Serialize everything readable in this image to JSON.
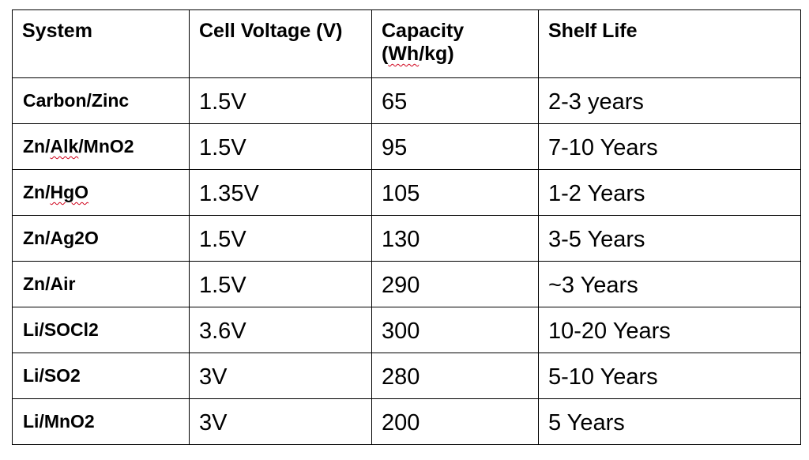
{
  "table": {
    "headers": {
      "system": "System",
      "cell_voltage": "Cell Voltage (V)",
      "capacity_line1": "Capacity",
      "capacity_line2_pre": "(",
      "capacity_line2_unit": "Wh",
      "capacity_line2_post": "/kg)",
      "shelf_life": "Shelf Life"
    },
    "rows": [
      {
        "system": "Carbon/Zinc",
        "voltage": "1.5V",
        "capacity": "65",
        "shelf_life": "2-3 years"
      },
      {
        "system_pre": "Zn/",
        "system_flag": "Alk",
        "system_post": "/MnO2",
        "voltage": "1.5V",
        "capacity": "95",
        "shelf_life": "7-10 Years"
      },
      {
        "system_pre": "Zn/",
        "system_flag": "HgO",
        "voltage": "1.35V",
        "capacity": "105",
        "shelf_life": "1-2 Years"
      },
      {
        "system": "Zn/Ag2O",
        "voltage": "1.5V",
        "capacity": "130",
        "shelf_life": "3-5 Years"
      },
      {
        "system": "Zn/Air",
        "voltage": "1.5V",
        "capacity": "290",
        "shelf_life": "~3 Years"
      },
      {
        "system": "Li/SOCl2",
        "voltage": "3.6V",
        "capacity": "300",
        "shelf_life": "10-20 Years"
      },
      {
        "system": "Li/SO2",
        "voltage": "3V",
        "capacity": "280",
        "shelf_life": "5-10 Years"
      },
      {
        "system": "Li/MnO2",
        "voltage": "3V",
        "capacity": "200",
        "shelf_life": "5 Years"
      }
    ],
    "spellcheck_color": "#d0021b"
  }
}
